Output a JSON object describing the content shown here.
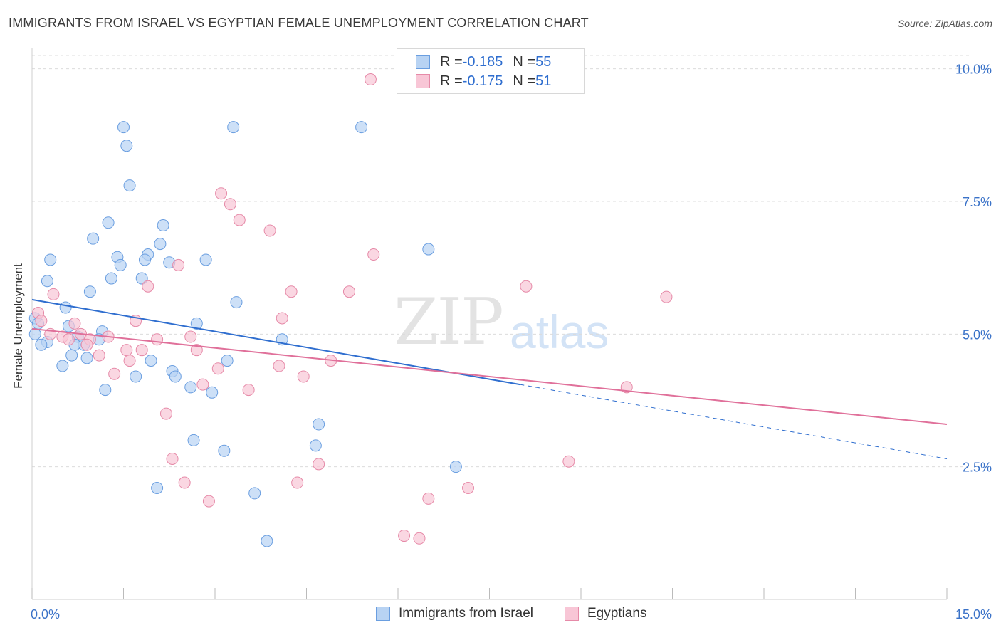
{
  "header": {
    "title": "IMMIGRANTS FROM ISRAEL VS EGYPTIAN FEMALE UNEMPLOYMENT CORRELATION CHART",
    "source": "Source: ZipAtlas.com"
  },
  "watermark": {
    "zip": "ZIP",
    "atlas": "atlas"
  },
  "legend_top": [
    {
      "r_label": "R = ",
      "r_value": "-0.185",
      "n_label": "N = ",
      "n_value": "55"
    },
    {
      "r_label": "R = ",
      "r_value": "-0.175",
      "n_label": "N = ",
      "n_value": "51"
    }
  ],
  "colors": {
    "blue_fill": "#b8d3f3",
    "blue_stroke": "#6a9ee0",
    "blue_line": "#2f6ecf",
    "pink_fill": "#f8c6d6",
    "pink_stroke": "#e68aa8",
    "pink_line": "#e0709a",
    "tick_text": "#3a72c8",
    "grid": "#dcdcdc"
  },
  "chart_data": {
    "type": "scatter",
    "title": "IMMIGRANTS FROM ISRAEL VS EGYPTIAN FEMALE UNEMPLOYMENT CORRELATION CHART",
    "xlabel": "",
    "ylabel": "Female Unemployment",
    "xlim": [
      0,
      15
    ],
    "ylim": [
      0,
      10.25
    ],
    "x_tick_labels": [
      "0.0%",
      "15.0%"
    ],
    "y_ticks": [
      2.5,
      5.0,
      7.5,
      10.0
    ],
    "y_tick_labels": [
      "2.5%",
      "5.0%",
      "7.5%",
      "10.0%"
    ],
    "grid": true,
    "legend_position": "bottom",
    "series": [
      {
        "name": "Immigrants from Israel",
        "trend": {
          "x0": 0.0,
          "y0": 5.65,
          "x1": 8.0,
          "y1": 4.05,
          "dash_to_x": 15.0,
          "dash_to_y": 2.65
        },
        "points": [
          [
            1.5,
            8.9
          ],
          [
            1.55,
            8.55
          ],
          [
            1.6,
            7.8
          ],
          [
            1.25,
            7.1
          ],
          [
            2.15,
            7.05
          ],
          [
            1.0,
            6.8
          ],
          [
            2.1,
            6.7
          ],
          [
            0.3,
            6.4
          ],
          [
            1.4,
            6.45
          ],
          [
            1.9,
            6.5
          ],
          [
            1.85,
            6.4
          ],
          [
            1.45,
            6.3
          ],
          [
            2.25,
            6.35
          ],
          [
            2.85,
            6.4
          ],
          [
            1.3,
            6.05
          ],
          [
            1.8,
            6.05
          ],
          [
            0.25,
            6.0
          ],
          [
            0.95,
            5.8
          ],
          [
            3.35,
            5.6
          ],
          [
            0.55,
            5.5
          ],
          [
            0.05,
            5.3
          ],
          [
            0.1,
            5.2
          ],
          [
            0.6,
            5.15
          ],
          [
            2.7,
            5.2
          ],
          [
            0.05,
            5.0
          ],
          [
            1.15,
            5.05
          ],
          [
            0.75,
            4.95
          ],
          [
            0.25,
            4.85
          ],
          [
            0.15,
            4.8
          ],
          [
            0.85,
            4.8
          ],
          [
            0.7,
            4.8
          ],
          [
            1.1,
            4.9
          ],
          [
            4.1,
            4.9
          ],
          [
            0.65,
            4.6
          ],
          [
            0.9,
            4.55
          ],
          [
            0.5,
            4.4
          ],
          [
            3.2,
            4.5
          ],
          [
            1.95,
            4.5
          ],
          [
            2.3,
            4.3
          ],
          [
            1.7,
            4.2
          ],
          [
            2.35,
            4.2
          ],
          [
            2.6,
            4.0
          ],
          [
            1.2,
            3.95
          ],
          [
            2.95,
            3.9
          ],
          [
            3.3,
            8.9
          ],
          [
            5.4,
            8.9
          ],
          [
            6.5,
            6.6
          ],
          [
            4.7,
            3.3
          ],
          [
            2.65,
            3.0
          ],
          [
            4.65,
            2.9
          ],
          [
            3.15,
            2.8
          ],
          [
            6.95,
            2.5
          ],
          [
            2.05,
            2.1
          ],
          [
            3.65,
            2.0
          ],
          [
            3.85,
            1.1
          ]
        ]
      },
      {
        "name": "Egyptians",
        "trend": {
          "x0": 0.0,
          "y0": 5.1,
          "x1": 15.0,
          "y1": 3.3
        },
        "points": [
          [
            5.55,
            9.8
          ],
          [
            3.1,
            7.65
          ],
          [
            3.25,
            7.45
          ],
          [
            3.4,
            7.15
          ],
          [
            3.9,
            6.95
          ],
          [
            5.6,
            6.5
          ],
          [
            2.4,
            6.3
          ],
          [
            1.9,
            5.9
          ],
          [
            4.25,
            5.8
          ],
          [
            5.2,
            5.8
          ],
          [
            8.1,
            5.9
          ],
          [
            10.4,
            5.7
          ],
          [
            0.35,
            5.75
          ],
          [
            0.1,
            5.4
          ],
          [
            0.15,
            5.25
          ],
          [
            4.1,
            5.3
          ],
          [
            1.7,
            5.25
          ],
          [
            0.7,
            5.2
          ],
          [
            0.3,
            5.0
          ],
          [
            0.5,
            4.95
          ],
          [
            0.6,
            4.9
          ],
          [
            0.8,
            5.0
          ],
          [
            0.95,
            4.9
          ],
          [
            1.25,
            4.95
          ],
          [
            1.55,
            4.7
          ],
          [
            1.8,
            4.7
          ],
          [
            2.05,
            4.9
          ],
          [
            2.6,
            4.95
          ],
          [
            2.7,
            4.7
          ],
          [
            1.1,
            4.6
          ],
          [
            1.6,
            4.5
          ],
          [
            4.9,
            4.5
          ],
          [
            3.05,
            4.35
          ],
          [
            4.05,
            4.4
          ],
          [
            1.35,
            4.25
          ],
          [
            4.45,
            4.2
          ],
          [
            2.8,
            4.05
          ],
          [
            3.55,
            3.95
          ],
          [
            9.75,
            4.0
          ],
          [
            2.2,
            3.5
          ],
          [
            2.3,
            2.65
          ],
          [
            4.7,
            2.55
          ],
          [
            8.8,
            2.6
          ],
          [
            2.5,
            2.2
          ],
          [
            4.35,
            2.2
          ],
          [
            7.15,
            2.1
          ],
          [
            2.9,
            1.85
          ],
          [
            6.5,
            1.9
          ],
          [
            6.1,
            1.2
          ],
          [
            6.35,
            1.15
          ],
          [
            0.9,
            4.8
          ]
        ]
      }
    ]
  },
  "legend_bottom": [
    "Immigrants from Israel",
    "Egyptians"
  ]
}
